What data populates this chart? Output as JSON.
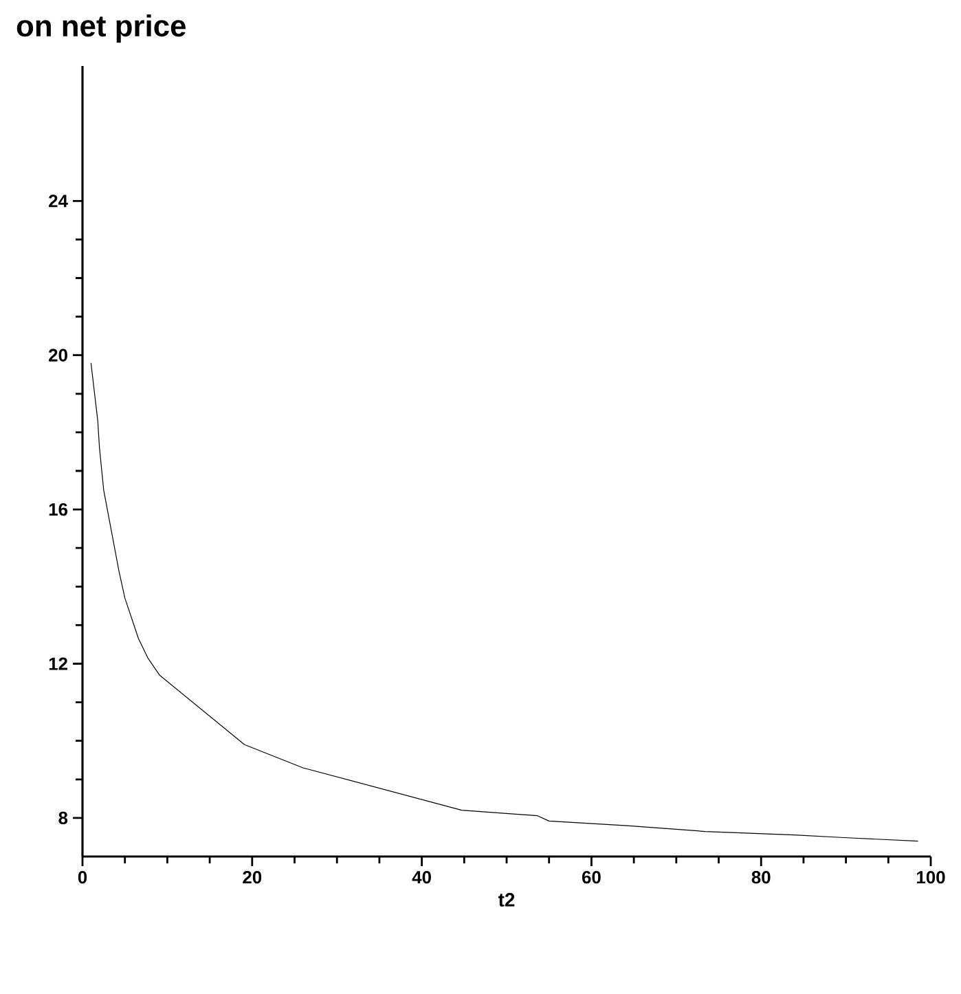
{
  "chart_data": {
    "type": "line",
    "title": "on net price",
    "xlabel": "t2",
    "xlim": [
      0,
      100
    ],
    "ylim": [
      7,
      27.5
    ],
    "xticks": [
      0,
      20,
      40,
      60,
      80,
      100
    ],
    "yticks": [
      8,
      12,
      16,
      20,
      24
    ],
    "grid": false,
    "marker": "none",
    "line_style": "solid",
    "series": [
      {
        "color": "#000000",
        "x": [
          1.0,
          1.8,
          2.0,
          2.5,
          4.3,
          5.0,
          6.6,
          7.7,
          9.1,
          19.1,
          26.0,
          44.7,
          53.6,
          55.0,
          64.2,
          73.4,
          83.9,
          89.8,
          98.5
        ],
        "values": [
          19.8,
          18.3,
          17.6,
          16.5,
          14.4,
          13.7,
          12.65,
          12.15,
          11.7,
          9.9,
          9.3,
          8.2,
          8.06,
          7.92,
          7.8,
          7.65,
          7.56,
          7.49,
          7.4
        ]
      }
    ]
  }
}
